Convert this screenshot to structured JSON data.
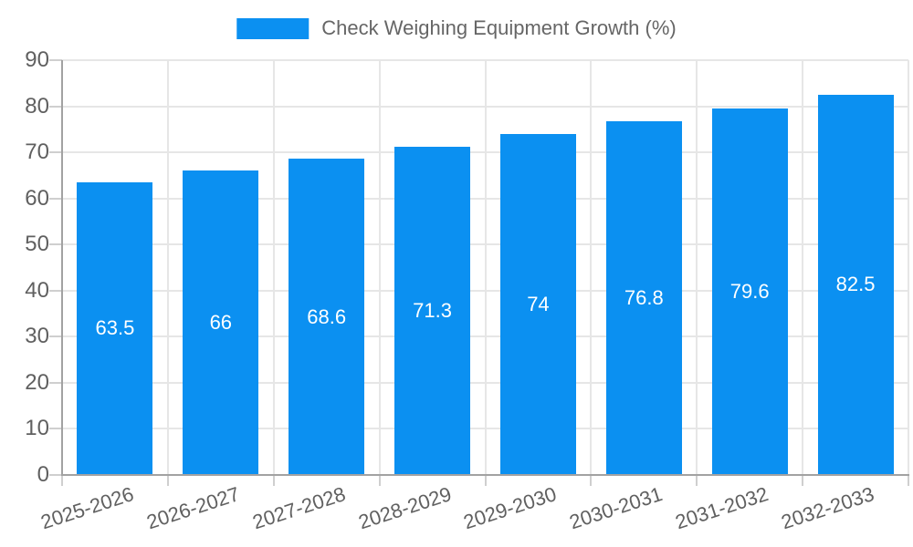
{
  "chart_data": {
    "type": "bar",
    "title": "Check Weighing Equipment Growth (%)",
    "legend": {
      "label": "Check Weighing Equipment Growth (%)",
      "position": "top"
    },
    "categories": [
      "2025-2026",
      "2026-2027",
      "2027-2028",
      "2028-2029",
      "2029-2030",
      "2030-2031",
      "2031-2032",
      "2032-2033"
    ],
    "values": [
      63.5,
      66,
      68.6,
      71.3,
      74,
      76.8,
      79.6,
      82.5
    ],
    "xlabel": "",
    "ylabel": "",
    "ylim": [
      0,
      90
    ],
    "ytick_step": 10,
    "yticks": [
      0,
      10,
      20,
      30,
      40,
      50,
      60,
      70,
      80,
      90
    ],
    "grid": true,
    "x_label_rotation_deg": -18,
    "style": {
      "bar_color": "#0b90f1",
      "bar_value_color": "#ffffff",
      "grid_color": "#e6e6e6",
      "axis_color": "#a2a2a2",
      "tick_color": "#cfcfcf",
      "tick_label_color": "#606060",
      "legend_text_color": "#666666",
      "background_color": "#ffffff"
    }
  }
}
